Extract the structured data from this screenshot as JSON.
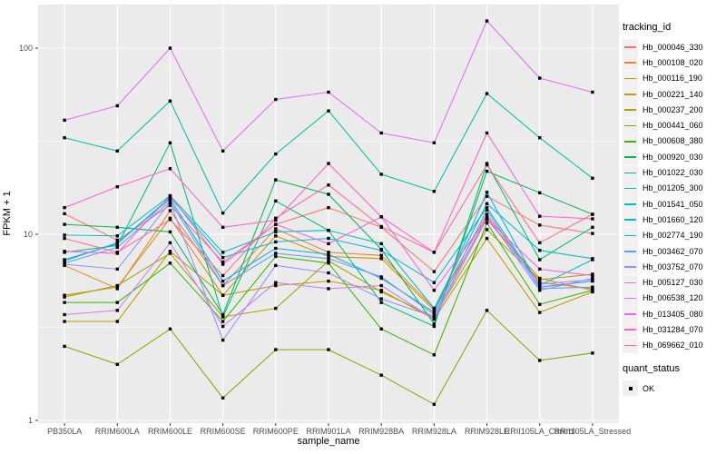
{
  "figure": {
    "xlabel": "sample_name",
    "ylabel": "FPKM + 1",
    "tracking_legend_title": "tracking_id",
    "quant_legend_title": "quant_status",
    "quant_ok_label": "OK"
  },
  "style_colors": {
    "panel_background": "#EBEBEB",
    "grid": "#FFFFFF",
    "point": "#000000",
    "tick_label": "#4D4D4D",
    "legend_key_background": "#F0F0F0"
  },
  "chart_data": {
    "type": "line",
    "title": "",
    "xlabel": "sample_name",
    "ylabel": "FPKM + 1",
    "y_scale": "log10",
    "y_ticks": [
      1,
      10,
      100
    ],
    "y_minor_ticks": [
      3.1623,
      31.623
    ],
    "ylim": [
      0.95,
      175
    ],
    "grid": true,
    "legend_position": "right",
    "point_shape": "filled-square",
    "categories": [
      "PB350LA",
      "RRIM600LA",
      "RRIM600LE",
      "RRIM600SE",
      "RRIM600PE",
      "RRIM901LA",
      "RRIM928BA",
      "RRIM928LA",
      "RRIM928LE",
      "RRII105LA_Control",
      "RRII105LA_Stressed"
    ],
    "series": [
      {
        "name": "Hb_000046_330",
        "color": "#F8766D",
        "values": [
          12.9,
          9.3,
          14.3,
          7.1,
          11.3,
          13.9,
          10.9,
          6.3,
          16.0,
          11.2,
          10.1
        ]
      },
      {
        "name": "Hb_000108_020",
        "color": "#EA8331",
        "values": [
          6.8,
          5.1,
          13.4,
          5.3,
          10.7,
          8.0,
          7.7,
          4.0,
          12.8,
          5.5,
          5.1
        ]
      },
      {
        "name": "Hb_000116_190",
        "color": "#D89000",
        "values": [
          4.7,
          5.2,
          12.2,
          4.7,
          9.8,
          7.6,
          7.4,
          3.9,
          12.0,
          5.8,
          5.0
        ]
      },
      {
        "name": "Hb_000221_140",
        "color": "#C09B00",
        "values": [
          3.4,
          3.4,
          8.1,
          4.7,
          5.3,
          5.6,
          5.0,
          3.5,
          9.5,
          3.8,
          4.9
        ]
      },
      {
        "name": "Hb_000237_200",
        "color": "#A3A500",
        "values": [
          4.6,
          5.3,
          7.9,
          3.6,
          4.0,
          7.2,
          4.9,
          3.6,
          10.6,
          5.7,
          6.1
        ]
      },
      {
        "name": "Hb_000441_060",
        "color": "#7CAE00",
        "values": [
          2.5,
          2.0,
          3.1,
          1.32,
          2.4,
          2.4,
          1.75,
          1.22,
          3.9,
          2.1,
          2.3
        ]
      },
      {
        "name": "Hb_000608_380",
        "color": "#39B600",
        "values": [
          4.3,
          4.3,
          7.0,
          3.4,
          7.6,
          7.0,
          3.1,
          2.25,
          11.5,
          4.2,
          5.0
        ]
      },
      {
        "name": "Hb_000920_030",
        "color": "#00BB4E",
        "values": [
          11.3,
          10.9,
          10.3,
          3.7,
          19.6,
          16.4,
          8.3,
          3.3,
          21.8,
          16.7,
          12.8
        ]
      },
      {
        "name": "Hb_001022_030",
        "color": "#00BF7D",
        "values": [
          8.0,
          8.7,
          31.0,
          3.6,
          15.1,
          10.5,
          4.3,
          3.2,
          24.0,
          7.3,
          10.9
        ]
      },
      {
        "name": "Hb_001205_300",
        "color": "#00C1A3",
        "values": [
          33.0,
          28.0,
          52.0,
          13.0,
          27.0,
          46.0,
          21.0,
          17.0,
          57.0,
          33.0,
          20.0
        ]
      },
      {
        "name": "Hb_001541_050",
        "color": "#00BFC4",
        "values": [
          9.9,
          9.8,
          16.1,
          8.0,
          10.3,
          10.5,
          8.9,
          4.0,
          14.6,
          8.2,
          7.4
        ]
      },
      {
        "name": "Hb_001660_120",
        "color": "#00BAE0",
        "values": [
          7.3,
          8.9,
          15.8,
          7.5,
          9.1,
          9.5,
          8.2,
          5.5,
          13.9,
          5.3,
          7.3
        ]
      },
      {
        "name": "Hb_002774_190",
        "color": "#00B0F6",
        "values": [
          7.2,
          9.0,
          15.5,
          5.6,
          8.4,
          7.8,
          5.8,
          3.8,
          16.8,
          5.2,
          5.6
        ]
      },
      {
        "name": "Hb_003462_070",
        "color": "#619CFF",
        "values": [
          7.0,
          8.5,
          15.0,
          5.3,
          7.9,
          7.4,
          5.9,
          3.7,
          13.5,
          5.1,
          5.2
        ]
      },
      {
        "name": "Hb_003752_070",
        "color": "#9590FF",
        "values": [
          6.9,
          6.5,
          14.8,
          2.7,
          6.8,
          6.2,
          4.5,
          3.6,
          12.5,
          5.0,
          5.8
        ]
      },
      {
        "name": "Hb_005127_030",
        "color": "#C77CFF",
        "values": [
          3.7,
          3.9,
          9.0,
          3.2,
          5.5,
          5.1,
          5.3,
          3.5,
          12.1,
          5.4,
          5.7
        ]
      },
      {
        "name": "Hb_006538_120",
        "color": "#E36EF6",
        "values": [
          41.0,
          49.0,
          100.0,
          28.0,
          53.0,
          58.0,
          35.0,
          31.0,
          140.0,
          69.0,
          58.0
        ]
      },
      {
        "name": "Hb_013405_080",
        "color": "#F763E0",
        "values": [
          8.1,
          7.9,
          16.1,
          6.9,
          11.3,
          8.9,
          12.4,
          5.0,
          12.1,
          6.5,
          6.0
        ]
      },
      {
        "name": "Hb_031284_070",
        "color": "#FF61C9",
        "values": [
          13.9,
          18.0,
          22.5,
          10.9,
          11.9,
          24.0,
          12.4,
          8.0,
          35.0,
          12.5,
          12.1
        ]
      },
      {
        "name": "Hb_069662_010",
        "color": "#FF6B96",
        "values": [
          9.5,
          8.0,
          12.0,
          6.0,
          12.2,
          18.4,
          11.0,
          8.0,
          23.6,
          9.0,
          12.8
        ]
      }
    ],
    "quant_status": {
      "title": "quant_status",
      "entries": [
        {
          "label": "OK",
          "marker": "black-square"
        }
      ]
    }
  }
}
